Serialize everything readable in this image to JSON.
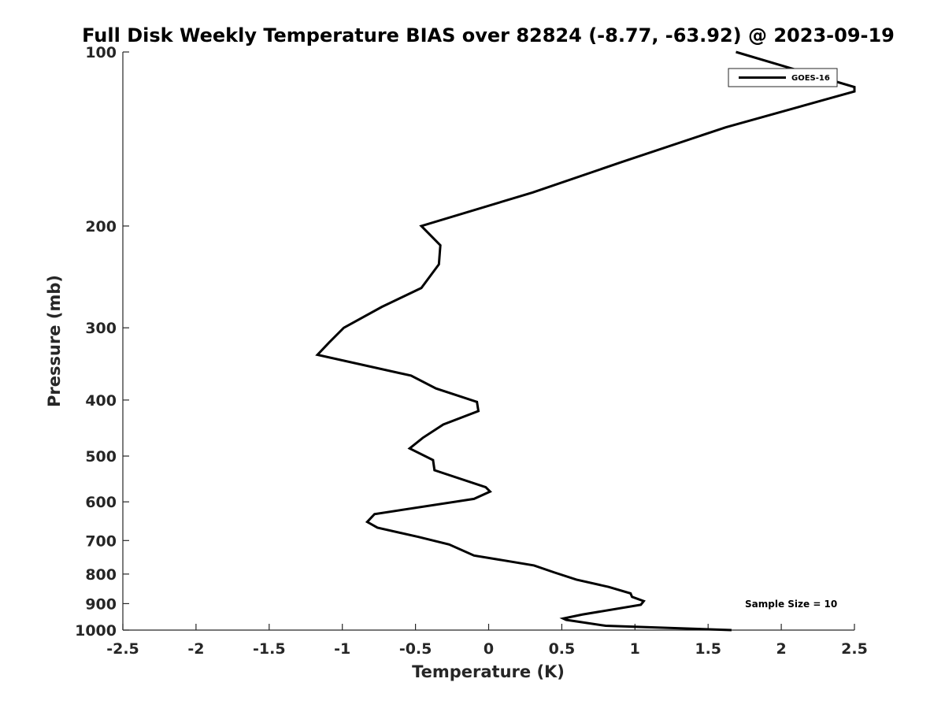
{
  "chart_data": {
    "type": "line",
    "title": "Full Disk Weekly Temperature BIAS over 82824 (-8.77, -63.92) @ 2023-09-19",
    "xlabel": "Temperature (K)",
    "ylabel": "Pressure (mb)",
    "xlim": [
      -2.5,
      2.5
    ],
    "ylim": [
      1000,
      100
    ],
    "y_scale": "log",
    "y_reversed": true,
    "grid": false,
    "legend_position": "top-right",
    "x_ticks": [
      -2.5,
      -2,
      -1.5,
      -1,
      -0.5,
      0,
      0.5,
      1,
      1.5,
      2,
      2.5
    ],
    "x_tick_labels": [
      "-2.5",
      "-2",
      "-1.5",
      "-1",
      "-0.5",
      "0",
      "0.5",
      "1",
      "1.5",
      "2",
      "2.5"
    ],
    "y_ticks": [
      100,
      200,
      300,
      400,
      500,
      600,
      700,
      800,
      900,
      1000
    ],
    "y_tick_labels": [
      "100",
      "200",
      "300",
      "400",
      "500",
      "600",
      "700",
      "800",
      "900",
      "1000"
    ],
    "series": [
      {
        "name": "GOES-16",
        "color": "#000000",
        "points": [
          [
            1.69,
            100
          ],
          [
            2.5,
            115
          ],
          [
            2.5,
            117
          ],
          [
            1.62,
            135
          ],
          [
            0.91,
            155
          ],
          [
            0.3,
            175
          ],
          [
            -0.46,
            200
          ],
          [
            -0.33,
            216
          ],
          [
            -0.34,
            233
          ],
          [
            -0.46,
            256
          ],
          [
            -0.73,
            276
          ],
          [
            -0.99,
            300
          ],
          [
            -1.09,
            318
          ],
          [
            -1.17,
            334
          ],
          [
            -0.53,
            363
          ],
          [
            -0.36,
            382
          ],
          [
            -0.08,
            403
          ],
          [
            -0.07,
            418
          ],
          [
            -0.31,
            441
          ],
          [
            -0.45,
            465
          ],
          [
            -0.54,
            485
          ],
          [
            -0.38,
            508
          ],
          [
            -0.37,
            529
          ],
          [
            -0.02,
            566
          ],
          [
            0.01,
            576
          ],
          [
            -0.1,
            593
          ],
          [
            -0.78,
            630
          ],
          [
            -0.83,
            650
          ],
          [
            -0.76,
            665
          ],
          [
            -0.48,
            690
          ],
          [
            -0.27,
            711
          ],
          [
            -0.1,
            743
          ],
          [
            0.31,
            773
          ],
          [
            0.45,
            795
          ],
          [
            0.6,
            818
          ],
          [
            0.82,
            842
          ],
          [
            0.97,
            864
          ],
          [
            0.98,
            876
          ],
          [
            1.06,
            891
          ],
          [
            1.04,
            904
          ],
          [
            0.64,
            940
          ],
          [
            0.51,
            955
          ],
          [
            0.53,
            960
          ],
          [
            0.8,
            983
          ],
          [
            1.66,
            1000
          ]
        ]
      }
    ]
  },
  "annotations": {
    "sample_size": "Sample Size = 10"
  },
  "legend": {
    "label": "GOES-16"
  }
}
